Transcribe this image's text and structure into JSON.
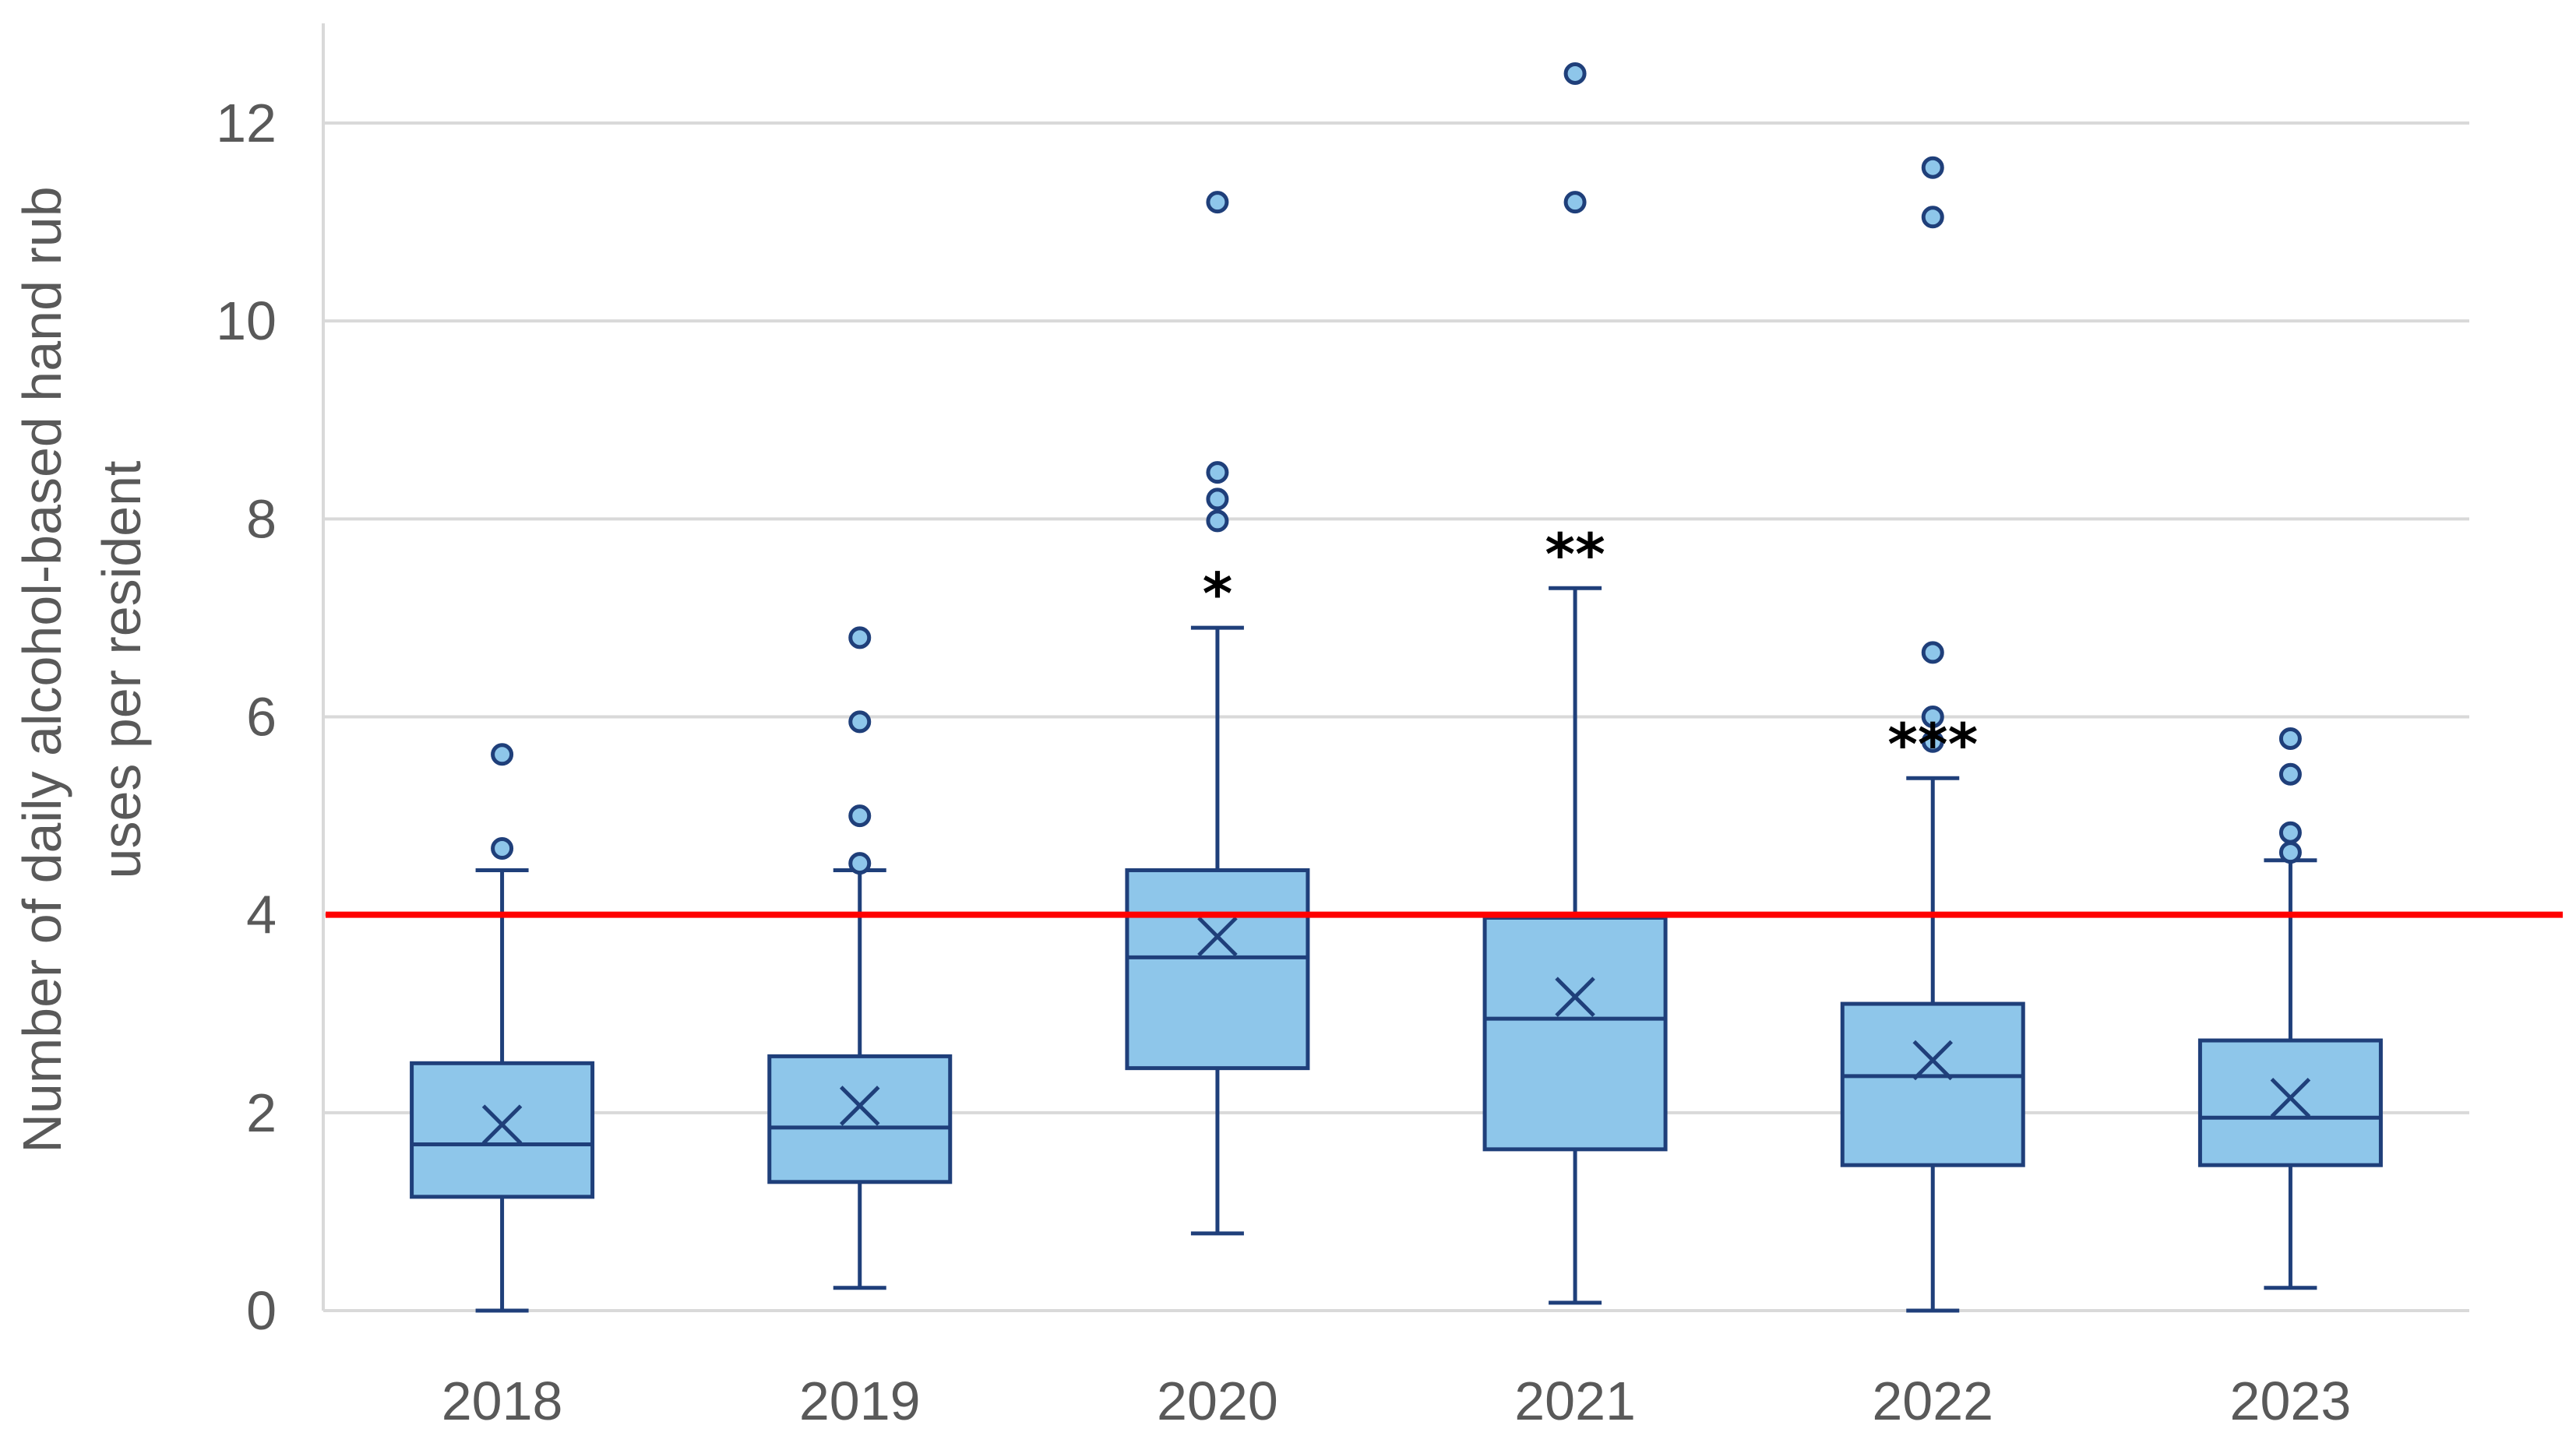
{
  "chart_data": {
    "type": "box",
    "title": "",
    "ylabel_lines": [
      "Number of daily alcohol-based hand rub",
      "uses per resident"
    ],
    "xlabel": "",
    "ylim": [
      0,
      13
    ],
    "yticks": [
      0,
      2,
      4,
      6,
      8,
      10,
      12
    ],
    "ytick_labels": [
      "0",
      "2",
      "4",
      "6",
      "8",
      "10",
      "12"
    ],
    "grid": true,
    "reference_line": {
      "y": 4.0,
      "color": "#ff0000"
    },
    "colors": {
      "box_fill": "#8ec6ea",
      "box_stroke": "#1f3f7a",
      "outlier_fill": "#8ec6ea",
      "grid": "#d9d9d9",
      "axis_text": "#595959"
    },
    "categories": [
      "2018",
      "2019",
      "2020",
      "2021",
      "2022",
      "2023"
    ],
    "boxes": [
      {
        "year": "2018",
        "whisker_low": 0.0,
        "q1": 1.15,
        "median": 1.68,
        "q3": 2.5,
        "whisker_high": 4.45,
        "mean": 1.88,
        "outliers": [
          5.62,
          4.67
        ],
        "significance": ""
      },
      {
        "year": "2019",
        "whisker_low": 0.23,
        "q1": 1.3,
        "median": 1.85,
        "q3": 2.57,
        "whisker_high": 4.45,
        "mean": 2.07,
        "outliers": [
          6.8,
          5.95,
          5.0,
          4.52
        ],
        "significance": ""
      },
      {
        "year": "2020",
        "whisker_low": 0.78,
        "q1": 2.45,
        "median": 3.57,
        "q3": 4.45,
        "whisker_high": 6.9,
        "mean": 3.78,
        "outliers": [
          11.2,
          8.47,
          8.2,
          7.98
        ],
        "significance": "*"
      },
      {
        "year": "2021",
        "whisker_low": 0.08,
        "q1": 1.63,
        "median": 2.95,
        "q3": 3.97,
        "whisker_high": 7.3,
        "mean": 3.17,
        "outliers": [
          12.5,
          11.2
        ],
        "significance": "**"
      },
      {
        "year": "2022",
        "whisker_low": 0.0,
        "q1": 1.47,
        "median": 2.37,
        "q3": 3.1,
        "whisker_high": 5.38,
        "mean": 2.53,
        "outliers": [
          11.55,
          11.05,
          6.65,
          6.0,
          5.75
        ],
        "significance": "***"
      },
      {
        "year": "2023",
        "whisker_low": 0.23,
        "q1": 1.47,
        "median": 1.95,
        "q3": 2.73,
        "whisker_high": 4.55,
        "mean": 2.15,
        "outliers": [
          5.78,
          5.42,
          4.83,
          4.63
        ],
        "significance": ""
      }
    ]
  }
}
